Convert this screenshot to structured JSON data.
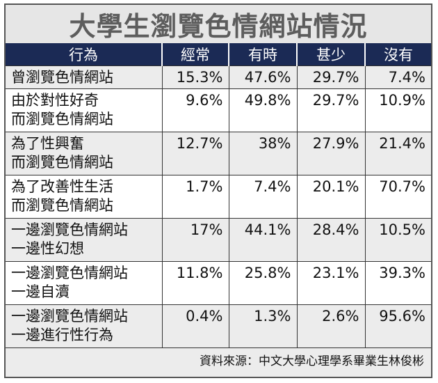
{
  "chart_data": {
    "type": "table",
    "title": "大學生瀏覽色情網站情況",
    "columns": [
      "行為",
      "經常",
      "有時",
      "甚少",
      "沒有"
    ],
    "rows": [
      {
        "label_lines": [
          "曾瀏覽色情網站"
        ],
        "values": [
          "15.3%",
          "47.6%",
          "29.7%",
          "7.4%"
        ]
      },
      {
        "label_lines": [
          "由於對性好奇",
          "而瀏覽色情網站"
        ],
        "values": [
          "9.6%",
          "49.8%",
          "29.7%",
          "10.9%"
        ]
      },
      {
        "label_lines": [
          "為了性興奮",
          "而瀏覽色情網站"
        ],
        "values": [
          "12.7%",
          "38%",
          "27.9%",
          "21.4%"
        ]
      },
      {
        "label_lines": [
          "為了改善性生活",
          "而瀏覽色情網站"
        ],
        "values": [
          "1.7%",
          "7.4%",
          "20.1%",
          "70.7%"
        ]
      },
      {
        "label_lines": [
          "一邊瀏覽色情網站",
          "一邊性幻想"
        ],
        "values": [
          "17%",
          "44.1%",
          "28.4%",
          "10.5%"
        ]
      },
      {
        "label_lines": [
          "一邊瀏覽色情網站",
          "一邊自瀆"
        ],
        "values": [
          "11.8%",
          "25.8%",
          "23.1%",
          "39.3%"
        ]
      },
      {
        "label_lines": [
          "一邊瀏覽色情網站",
          "一邊進行性行為"
        ],
        "values": [
          "0.4%",
          "1.3%",
          "2.6%",
          "95.6%"
        ]
      }
    ],
    "source": "資料來源：中文大學心理學系畢業生林俊彬"
  },
  "colors": {
    "header_bg": "#1b2a55",
    "header_text": "#ffffff",
    "title_text": "#5d5d5d",
    "row_even_bg": "#ececec",
    "row_odd_bg": "#ffffff"
  }
}
